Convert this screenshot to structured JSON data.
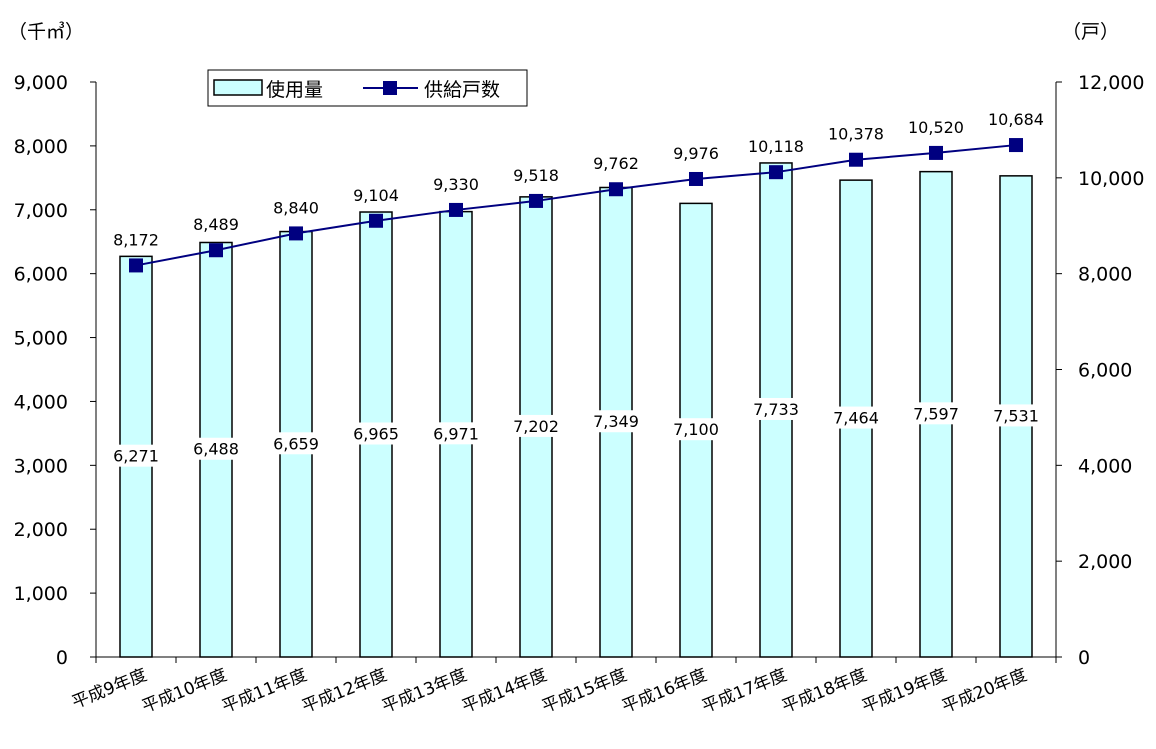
{
  "chart_data": {
    "type": "bar+line",
    "categories": [
      "平成9年度",
      "平成10年度",
      "平成11年度",
      "平成12年度",
      "平成13年度",
      "平成14年度",
      "平成15年度",
      "平成16年度",
      "平成17年度",
      "平成18年度",
      "平成19年度",
      "平成20年度"
    ],
    "series": [
      {
        "name": "使用量",
        "type": "bar",
        "axis": "left",
        "values": [
          6271,
          6488,
          6659,
          6965,
          6971,
          7202,
          7349,
          7100,
          7733,
          7464,
          7597,
          7531
        ],
        "color": "#ccffff"
      },
      {
        "name": "供給戸数",
        "type": "line",
        "axis": "right",
        "values": [
          8172,
          8489,
          8840,
          9104,
          9330,
          9518,
          9762,
          9976,
          10118,
          10378,
          10520,
          10684
        ],
        "color": "#000080"
      }
    ],
    "y_left": {
      "unit": "（千㎥）",
      "range": [
        0,
        9000
      ],
      "ticks": [
        "0",
        "1,000",
        "2,000",
        "3,000",
        "4,000",
        "5,000",
        "6,000",
        "7,000",
        "8,000",
        "9,000"
      ]
    },
    "y_right": {
      "unit": "（戸）",
      "range": [
        0,
        12000
      ],
      "ticks": [
        "0",
        "2,000",
        "4,000",
        "6,000",
        "8,000",
        "10,000",
        "12,000"
      ]
    },
    "legend": "top-left",
    "grid": false
  }
}
